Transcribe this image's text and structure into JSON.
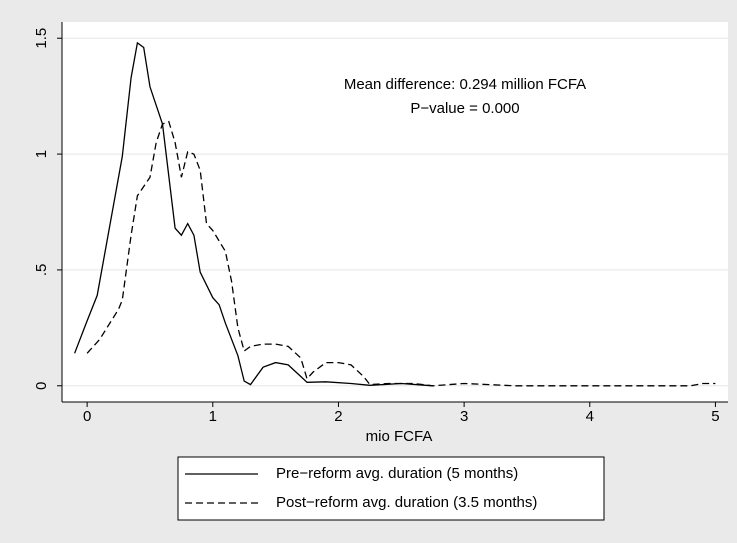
{
  "chart_data": {
    "type": "line",
    "xlabel": "mio FCFA",
    "annotations": [
      "Mean difference: 0.294 million FCFA",
      "P−value = 0.000"
    ],
    "xlim": [
      -0.2,
      5.1
    ],
    "xticks": [
      0,
      1,
      2,
      3,
      4,
      5
    ],
    "ylim": [
      -0.07,
      1.57
    ],
    "yticks": [
      0,
      {
        "value": 0.5,
        "label": ".5"
      },
      1,
      1.5
    ],
    "grid": true,
    "legend": "bottom",
    "series": [
      {
        "name": "Pre−reform avg. duration (5 months)",
        "color": "#000000",
        "dash": "solid",
        "x": [
          -0.1,
          0,
          0.08,
          0.28,
          0.35,
          0.4,
          0.45,
          0.5,
          0.6,
          0.7,
          0.75,
          0.8,
          0.85,
          0.9,
          1.0,
          1.05,
          1.1,
          1.2,
          1.25,
          1.3,
          1.4,
          1.5,
          1.6,
          1.7,
          1.75,
          1.9,
          2.1,
          2.25,
          2.5,
          2.75
        ],
        "values": [
          0.14,
          0.28,
          0.39,
          0.99,
          1.33,
          1.48,
          1.46,
          1.29,
          1.13,
          0.68,
          0.65,
          0.7,
          0.65,
          0.49,
          0.38,
          0.35,
          0.27,
          0.13,
          0.02,
          0.005,
          0.08,
          0.1,
          0.09,
          0.04,
          0.015,
          0.017,
          0.01,
          0.002,
          0.01,
          0
        ]
      },
      {
        "name": "Post−reform avg. duration (3.5 months)",
        "color": "#000000",
        "dash": "dashed",
        "x": [
          0,
          0.1,
          0.25,
          0.28,
          0.35,
          0.4,
          0.45,
          0.5,
          0.55,
          0.6,
          0.65,
          0.7,
          0.75,
          0.8,
          0.85,
          0.9,
          0.95,
          1.0,
          1.1,
          1.15,
          1.2,
          1.25,
          1.3,
          1.4,
          1.5,
          1.6,
          1.7,
          1.75,
          1.8,
          1.9,
          2.0,
          2.1,
          2.2,
          2.25,
          2.4,
          2.6,
          2.75,
          3.0,
          3.2,
          3.4,
          4.0,
          4.8,
          4.9,
          5.0
        ],
        "values": [
          0.14,
          0.2,
          0.33,
          0.37,
          0.65,
          0.82,
          0.86,
          0.9,
          1.05,
          1.13,
          1.14,
          1.05,
          0.9,
          1.01,
          1.0,
          0.93,
          0.7,
          0.67,
          0.58,
          0.45,
          0.25,
          0.15,
          0.17,
          0.18,
          0.18,
          0.17,
          0.12,
          0.03,
          0.06,
          0.1,
          0.1,
          0.09,
          0.04,
          0.005,
          0.01,
          0.01,
          0,
          0.01,
          0.005,
          0,
          0,
          0,
          0.01,
          0.01
        ]
      }
    ]
  }
}
